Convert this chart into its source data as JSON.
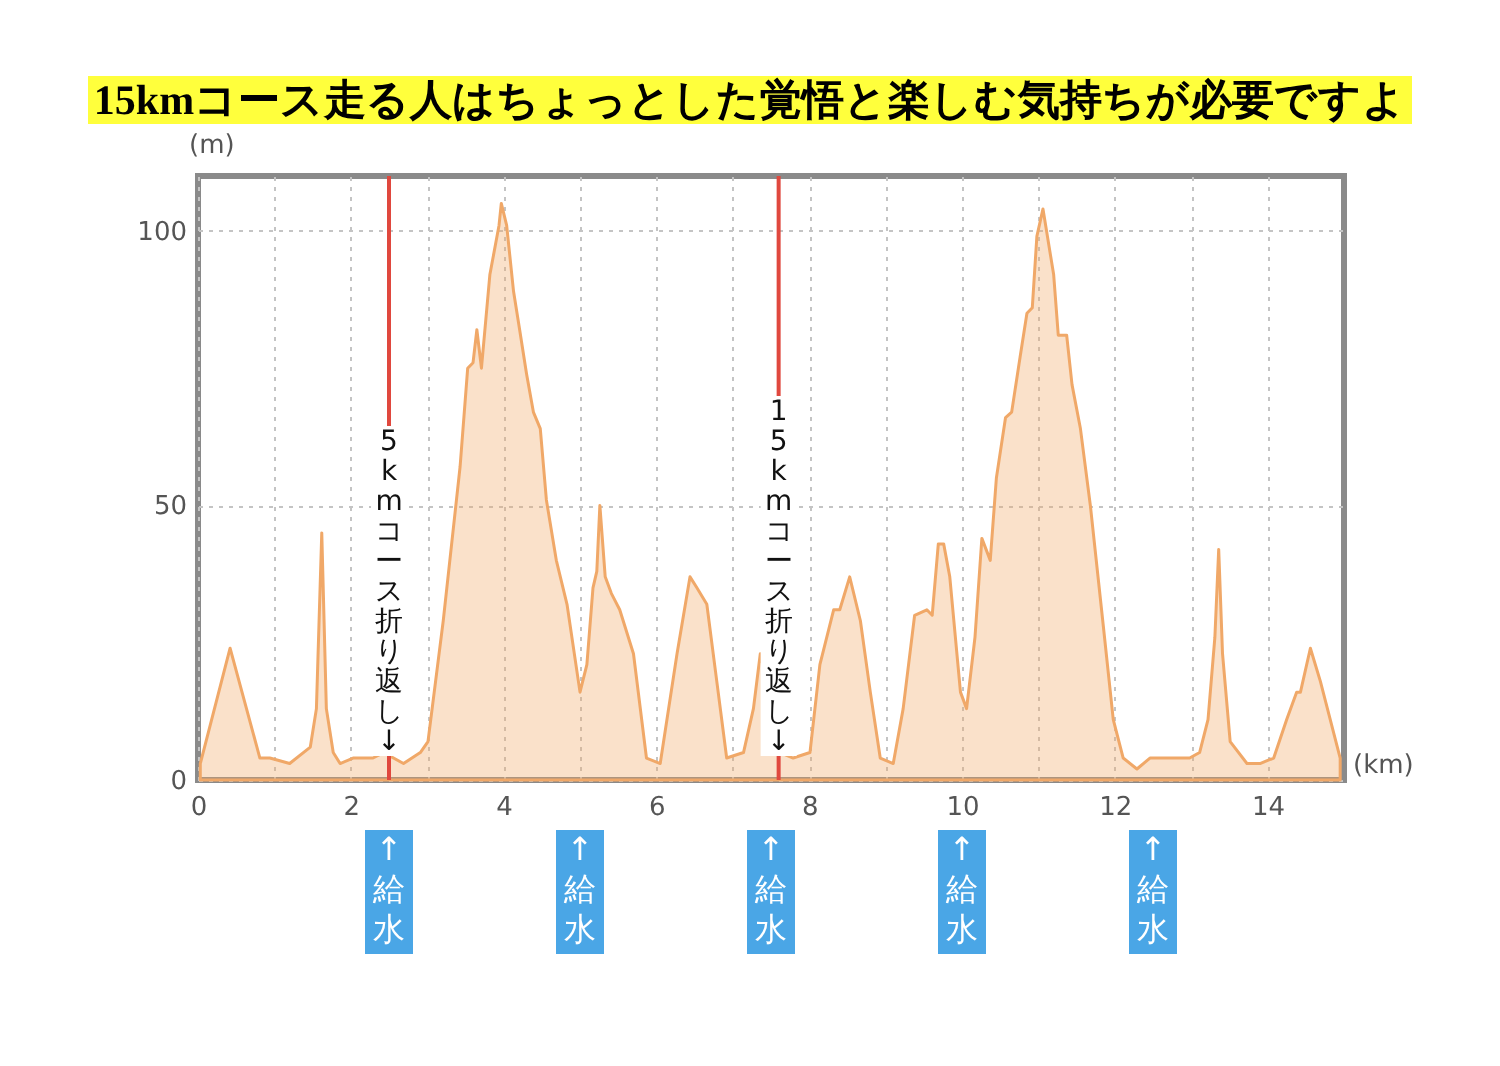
{
  "chart_data": {
    "type": "area",
    "title": "15kmコース走る人はちょっとした覚悟と楽しむ気持ちが必要ですよ",
    "xlabel": "(km)",
    "ylabel": "(m)",
    "color": "#f0a868",
    "x": [
      0.03,
      0.42,
      0.81,
      0.94,
      1.2,
      1.47,
      1.55,
      1.62,
      1.68,
      1.77,
      1.86,
      2.03,
      2.29,
      2.43,
      2.69,
      2.91,
      3.01,
      3.21,
      3.43,
      3.53,
      3.6,
      3.65,
      3.71,
      3.82,
      3.94,
      3.97,
      4.04,
      4.13,
      4.21,
      4.3,
      4.39,
      4.48,
      4.56,
      4.69,
      4.83,
      5.0,
      5.09,
      5.17,
      5.22,
      5.26,
      5.33,
      5.41,
      5.52,
      5.7,
      5.87,
      6.05,
      6.27,
      6.44,
      6.53,
      6.66,
      6.79,
      6.92,
      7.14,
      7.27,
      7.36,
      7.49,
      7.62,
      7.79,
      8.01,
      8.14,
      8.32,
      8.4,
      8.53,
      8.67,
      8.8,
      8.93,
      9.1,
      9.23,
      9.38,
      9.54,
      9.61,
      9.69,
      9.76,
      9.84,
      9.98,
      10.06,
      10.17,
      10.26,
      10.37,
      10.45,
      10.57,
      10.65,
      10.76,
      10.85,
      10.92,
      10.98,
      11.06,
      11.2,
      11.26,
      11.37,
      11.44,
      11.55,
      11.68,
      11.85,
      11.98,
      12.11,
      12.29,
      12.46,
      12.64,
      12.81,
      12.98,
      13.11,
      13.22,
      13.31,
      13.36,
      13.41,
      13.51,
      13.73,
      13.9,
      14.08,
      14.25,
      14.38,
      14.43,
      14.56,
      14.69,
      14.95
    ],
    "values": [
      3,
      24,
      4,
      4,
      3,
      6,
      13,
      45,
      13,
      5,
      3,
      4,
      4,
      5,
      3,
      5,
      7,
      29,
      57,
      75,
      76,
      82,
      75,
      92,
      101,
      105,
      101,
      89,
      82,
      74,
      67,
      64,
      51,
      40,
      32,
      16,
      21,
      35,
      38,
      50,
      37,
      34,
      31,
      23,
      4,
      3,
      23,
      37,
      35,
      32,
      18,
      4,
      5,
      13,
      23,
      15,
      5,
      4,
      5,
      21,
      31,
      31,
      37,
      29,
      16,
      4,
      3,
      13,
      30,
      31,
      30,
      43,
      43,
      37,
      16,
      13,
      26,
      44,
      40,
      55,
      66,
      67,
      77,
      85,
      86,
      99,
      104,
      92,
      81,
      81,
      72,
      64,
      50,
      28,
      11,
      4,
      2,
      4,
      4,
      4,
      4,
      5,
      11,
      26,
      42,
      23,
      7,
      3,
      3,
      4,
      11,
      16,
      16,
      24,
      18,
      4
    ],
    "xlim": [
      0,
      15
    ],
    "ylim": [
      0,
      110
    ],
    "xticks": [
      0,
      {
        "value": 1,
        "label": null
      },
      2,
      {
        "value": 3,
        "label": null
      },
      4,
      {
        "value": 5,
        "label": null
      },
      6,
      {
        "value": 7,
        "label": null
      },
      8,
      {
        "value": 9,
        "label": null
      },
      10,
      {
        "value": 11,
        "label": null
      },
      12,
      {
        "value": 13,
        "label": null
      },
      14
    ],
    "yticks": [
      0,
      50,
      100
    ],
    "grid": true,
    "ref_lines": [
      {
        "axis": "x",
        "value": 2.5,
        "label": "5kmコース折り返し↓",
        "color": "#e0483e"
      },
      {
        "axis": "x",
        "value": 7.6,
        "label": "15kmコース折り返し↓",
        "color": "#e0483e"
      }
    ],
    "annotations": [
      {
        "text": "↑給水",
        "x": 2.5
      },
      {
        "text": "↑給水",
        "x": 5
      },
      {
        "text": "↑給水",
        "x": 7.5
      },
      {
        "text": "↑給水",
        "x": 10
      },
      {
        "text": "↑給水",
        "x": 12.5
      }
    ]
  }
}
